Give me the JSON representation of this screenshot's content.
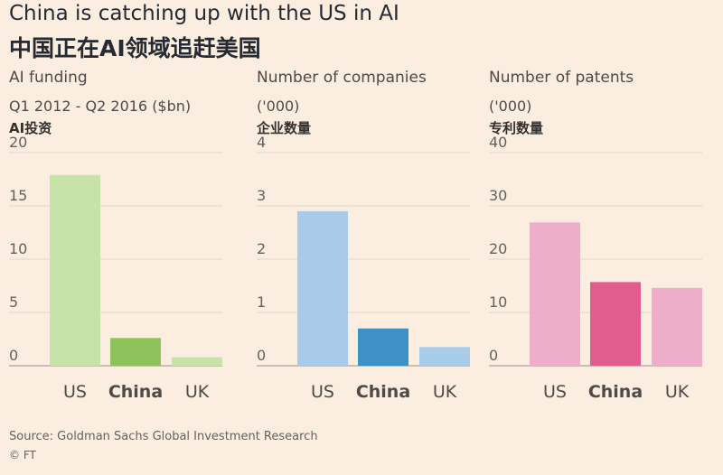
{
  "header": {
    "title": "China is catching up with the US in AI",
    "subtitle": "中国正在AI领域追赶美国"
  },
  "chart_data": [
    {
      "type": "bar",
      "title": "AI funding",
      "subtitle": "Q1 2012 - Q2 2016 ($bn)",
      "title_cn": "AI投资",
      "categories": [
        "US",
        "China",
        "UK"
      ],
      "values": [
        17.9,
        2.6,
        0.8
      ],
      "yticks": [
        0,
        5,
        10,
        15,
        20
      ],
      "ylim": [
        0,
        20
      ],
      "colors": [
        "#c7e3a8",
        "#8ec25a",
        "#c7e3a8"
      ],
      "grid": true
    },
    {
      "type": "bar",
      "title": "Number of companies",
      "subtitle": "('000)",
      "title_cn": "企业数量",
      "categories": [
        "US",
        "China",
        "UK"
      ],
      "values": [
        2.9,
        0.7,
        0.35
      ],
      "yticks": [
        0,
        1,
        2,
        3,
        4
      ],
      "ylim": [
        0,
        4
      ],
      "colors": [
        "#a7cbe9",
        "#3e91c4",
        "#a7cbe9"
      ],
      "grid": true
    },
    {
      "type": "bar",
      "title": "Number of patents",
      "subtitle": "('000)",
      "title_cn": "专利数量",
      "categories": [
        "US",
        "China",
        "UK"
      ],
      "values": [
        26.9,
        15.7,
        14.6
      ],
      "yticks": [
        0,
        10,
        20,
        30,
        40
      ],
      "ylim": [
        0,
        40
      ],
      "colors": [
        "#eeadc8",
        "#df5e8e",
        "#eeadc8"
      ],
      "grid": true
    }
  ],
  "footer": {
    "source": "Source: Goldman Sachs Global Investment Research",
    "credit": "© FT"
  }
}
